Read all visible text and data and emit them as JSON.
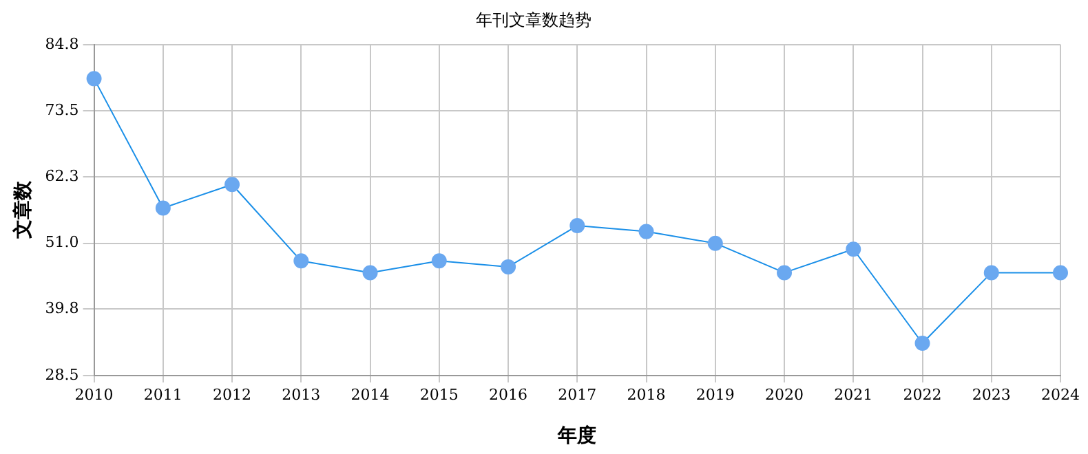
{
  "chart_data": {
    "type": "line",
    "title": "年刊文章数趋势",
    "xlabel": "年度",
    "ylabel": "文章数",
    "categories": [
      "2010",
      "2011",
      "2012",
      "2013",
      "2014",
      "2015",
      "2016",
      "2017",
      "2018",
      "2019",
      "2020",
      "2021",
      "2022",
      "2023",
      "2024"
    ],
    "series": [
      {
        "color": "#1a8fe8",
        "values": [
          79,
          57,
          61,
          48,
          46,
          48,
          47,
          54,
          53,
          51,
          46,
          50,
          34,
          46,
          46
        ]
      }
    ],
    "ylim": [
      28.5,
      84.8
    ],
    "yticks": [
      28.5,
      39.8,
      {
        "value": 51,
        "label": "51.0"
      },
      62.3,
      73.5,
      84.8
    ],
    "grid": true,
    "legend": false,
    "marker": "circle",
    "line_style": "solid"
  }
}
